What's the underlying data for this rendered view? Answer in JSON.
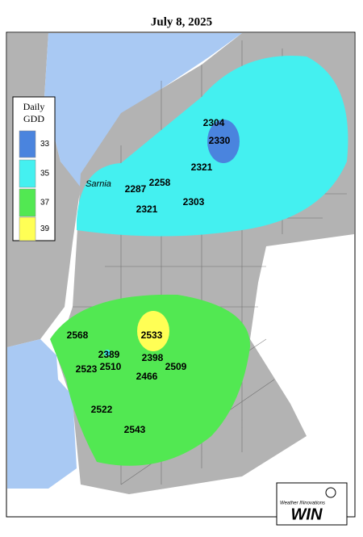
{
  "title": "July 8, 2025",
  "legend": {
    "title_lines": [
      "Daily",
      "GDD"
    ],
    "entries": [
      {
        "value": 33,
        "color": "#4a84de"
      },
      {
        "value": 35,
        "color": "#44f0f0"
      },
      {
        "value": 37,
        "color": "#52e852"
      },
      {
        "value": 39,
        "color": "#ffff55"
      }
    ]
  },
  "places": [
    "Sarnia"
  ],
  "stations": [
    2304,
    2330,
    2321,
    2258,
    2287,
    2303,
    2321,
    2568,
    2533,
    2389,
    2398,
    2510,
    2509,
    2523,
    2466,
    2522,
    2543
  ],
  "logo": {
    "tagline": "Weather INnovations",
    "name": "WIN"
  }
}
